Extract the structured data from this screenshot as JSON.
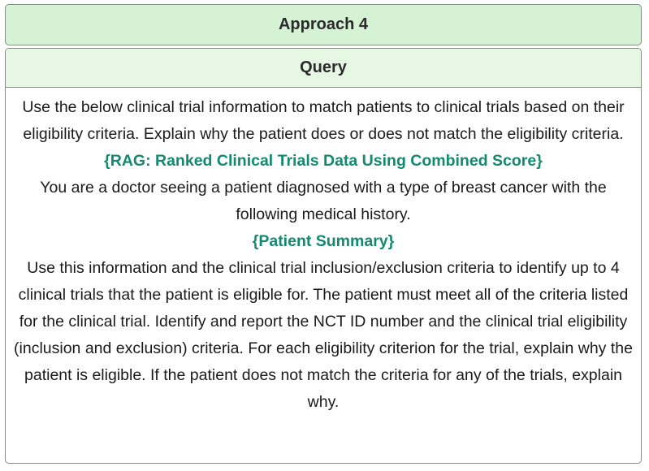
{
  "approach": {
    "title": "Approach 4"
  },
  "query": {
    "header": "Query",
    "intro": "Use the below clinical trial information to match patients to clinical trials based on their eligibility criteria. Explain why the patient does or does not match the eligibility criteria.",
    "rag_placeholder": "{RAG: Ranked Clinical Trials Data Using Combined Score}",
    "doctor_context": "You are a doctor seeing a patient diagnosed with a type of breast cancer with the following medical history.",
    "patient_placeholder": "{Patient Summary}",
    "instructions": "Use this information and the clinical trial inclusion/exclusion criteria to identify up to 4 clinical trials that the patient is eligible for. The patient must meet all of the criteria listed for the clinical trial. Identify and report the NCT ID number and the clinical trial eligibility (inclusion and exclusion) criteria. For each eligibility criterion for the trial, explain why the patient is eligible. If the patient does not match the criteria for any of the trials, explain why."
  },
  "colors": {
    "approach_header_bg": "#d6f2d4",
    "query_header_bg": "#e6f8e4",
    "placeholder_text": "#138a6e",
    "border": "#8a8a8a"
  }
}
